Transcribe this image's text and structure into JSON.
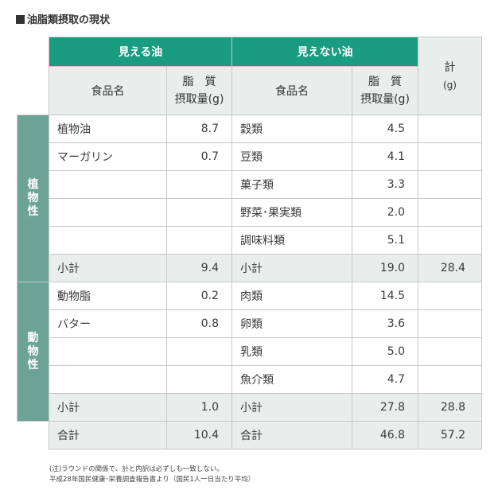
{
  "title": "油脂類摂取の現状",
  "header": {
    "visible": "見える油",
    "invisible": "見えない油",
    "total_label": "計",
    "total_unit": "(g)",
    "food_name": "食品名",
    "fat_line1": "脂　質",
    "fat_line2": "摂取量(g)"
  },
  "groups": {
    "plant": "植物性",
    "animal": "動物性"
  },
  "plant_rows": [
    {
      "vis_name": "植物油",
      "vis_val": "8.7",
      "inv_name": "穀類",
      "inv_val": "4.5"
    },
    {
      "vis_name": "マーガリン",
      "vis_val": "0.7",
      "inv_name": "豆類",
      "inv_val": "4.1"
    },
    {
      "vis_name": "",
      "vis_val": "",
      "inv_name": "菓子類",
      "inv_val": "3.3"
    },
    {
      "vis_name": "",
      "vis_val": "",
      "inv_name": "野菜･果実類",
      "inv_val": "2.0"
    },
    {
      "vis_name": "",
      "vis_val": "",
      "inv_name": "調味料類",
      "inv_val": "5.1"
    }
  ],
  "plant_subtotal": {
    "label": "小計",
    "vis_val": "9.4",
    "inv_label": "小計",
    "inv_val": "19.0",
    "total": "28.4"
  },
  "animal_rows": [
    {
      "vis_name": "動物脂",
      "vis_val": "0.2",
      "inv_name": "肉類",
      "inv_val": "14.5"
    },
    {
      "vis_name": "バター",
      "vis_val": "0.8",
      "inv_name": "卵類",
      "inv_val": "3.6"
    },
    {
      "vis_name": "",
      "vis_val": "",
      "inv_name": "乳類",
      "inv_val": "5.0"
    },
    {
      "vis_name": "",
      "vis_val": "",
      "inv_name": "魚介類",
      "inv_val": "4.7"
    }
  ],
  "animal_subtotal": {
    "label": "小計",
    "vis_val": "1.0",
    "inv_label": "小計",
    "inv_val": "27.8",
    "total": "28.8"
  },
  "grand_total": {
    "label": "合計",
    "vis_val": "10.4",
    "inv_label": "合計",
    "inv_val": "46.8",
    "total": "57.2"
  },
  "notes": [
    "(注)ラウンドの関係で、計と内訳は必ずしも一致しない。",
    "平成28年国民健康･栄養調査報告書より（国民1人一日当たり平均）"
  ]
}
